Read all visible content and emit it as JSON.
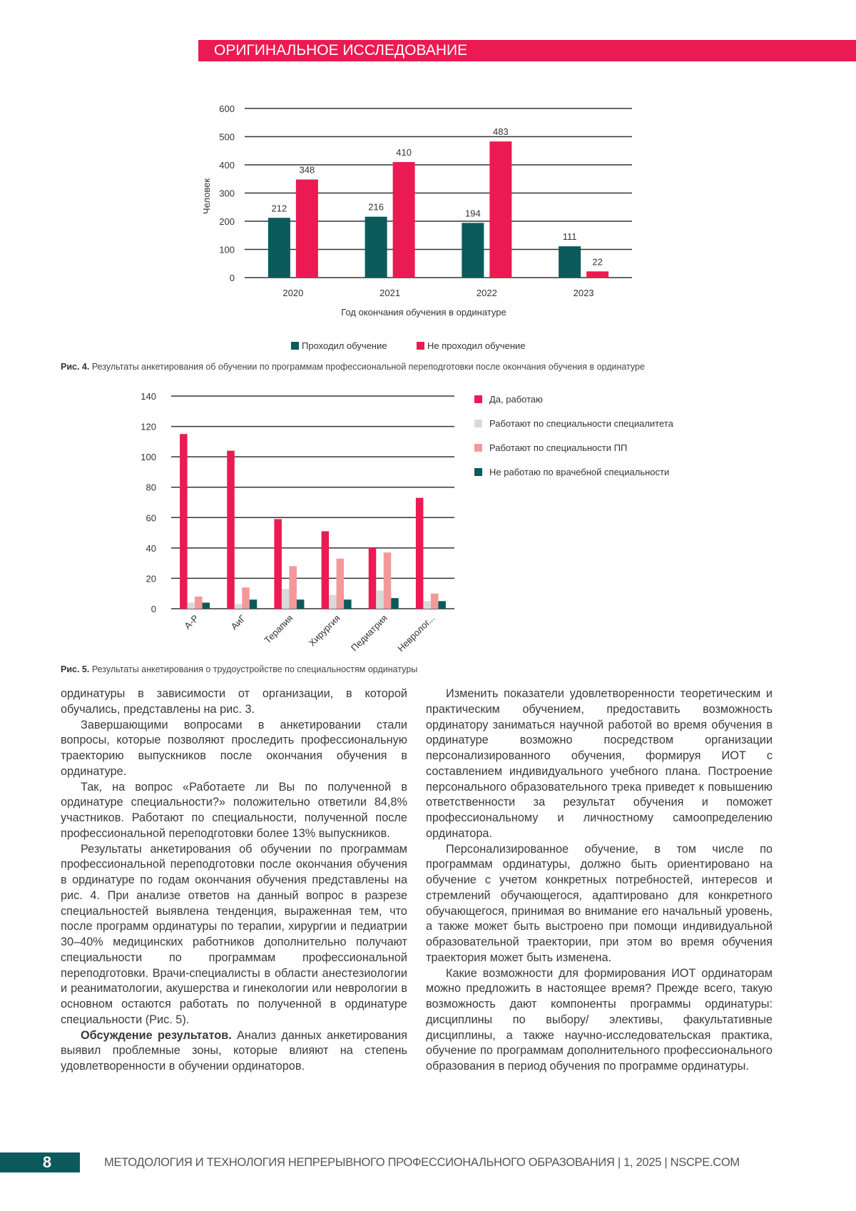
{
  "header": {
    "section": "ОРИГИНАЛЬНОЕ ИССЛЕДОВАНИЕ",
    "color": "#ec1a52"
  },
  "figure4": {
    "label": "Рис. 4.",
    "caption": "Результаты анкетирования об обучении по программам профессиональной переподготовки после окончания обучения в ординатуре"
  },
  "figure5": {
    "label": "Рис. 5.",
    "caption": "Результаты анкетирования о трудоустройстве по специальностям ординатуры"
  },
  "chart_data": [
    {
      "type": "bar",
      "title": "",
      "xlabel": "Год окончания обучения в ординатуре",
      "ylabel": "Человек",
      "categories": [
        "2020",
        "2021",
        "2022",
        "2023"
      ],
      "ylim": [
        0,
        600
      ],
      "yticks": [
        "0",
        "100",
        "200",
        "300",
        "400",
        "500",
        "600"
      ],
      "grid": true,
      "legend": "bottom",
      "series": [
        {
          "name": "Проходил обучение",
          "values": [
            212,
            216,
            194,
            111
          ],
          "color": "#0b5a5c"
        },
        {
          "name": "Не проходил обучение",
          "values": [
            348,
            410,
            483,
            22
          ],
          "color": "#ec1a52"
        }
      ]
    },
    {
      "type": "bar",
      "title": "",
      "xlabel": "",
      "ylabel": "",
      "categories": [
        "А-Р",
        "АиГ",
        "Терапия",
        "Хирургия",
        "Педиатрия",
        "Невролог..."
      ],
      "ylim": [
        0,
        140
      ],
      "yticks": [
        "0",
        "20",
        "40",
        "60",
        "80",
        "100",
        "120",
        "140"
      ],
      "grid": true,
      "legend": "right",
      "series": [
        {
          "name": "Да, работаю",
          "values": [
            115,
            104,
            59,
            51,
            40,
            73
          ],
          "color": "#ec1a52"
        },
        {
          "name": "Работают по специальности специалитета",
          "values": [
            4,
            3,
            13,
            9,
            12,
            5
          ],
          "color": "#d9d9d9"
        },
        {
          "name": "Работают по специальности ПП",
          "values": [
            8,
            14,
            28,
            33,
            37,
            10
          ],
          "color": "#f4999a"
        },
        {
          "name": "Не работаю по врачебной специальности",
          "values": [
            4,
            6,
            6,
            6,
            7,
            5
          ],
          "color": "#0b5a5c"
        }
      ]
    }
  ],
  "body": {
    "left": [
      "ординатуры в зависимости от организации, в которой обучались, представлены на рис. 3.",
      "Завершающими вопросами в анкетировании стали вопросы, которые позволяют проследить профессиональную траекторию выпускников после окончания обучения в ординатуре.",
      "Так, на вопрос «Работаете ли Вы по полученной в ординатуре специальности?» положительно ответили 84,8% участников. Работают по специальности, полученной после профессиональной переподготовки более 13% выпускников.",
      "Результаты анкетирования об обучении по программам профессиональной переподготовки после окончания обучения в ординатуре по годам окончания обучения представлены на рис. 4. При анализе ответов на данный вопрос в разрезе специальностей выявлена тенденция, выраженная тем, что после программ ординатуры по терапии, хирургии и педиатрии 30–40% медицинских работников дополнительно получают специальности по программам профессиональной переподготовки. Врачи-специалисты в области анестезиологии и реаниматологии, акушерства и гинекологии или неврологии в основном остаются работать по полученной в ординатуре специальности (Рис. 5)."
    ],
    "discussion_heading": "Обсуждение результатов.",
    "discussion_text": " Анализ данных анкетирования выявил проблемные зоны, которые влияют на степень удовлетворенности в обучении ординаторов.",
    "right": [
      "Изменить показатели удовлетворенности теоретическим и практическим обучением, предоставить возможность ординатору заниматься научной работой во время обучения в ординатуре возможно посредством организации персонализированного обучения, формируя ИОТ с составлением индивидуального учебного плана. Построение персонального образовательного трека приведет к повышению ответственности за результат обучения и поможет профессиональному и личностному самоопределению ординатора.",
      "Персонализированное обучение, в том числе по программам ординатуры, должно быть ориентировано на обучение с учетом конкретных потребностей, интересов и стремлений обучающегося, адаптировано для конкретного обучающегося, принимая во внимание его начальный уровень, а также может быть выстроено при помощи индивидуальной образовательной траектории, при этом во время обучения траектория может быть изменена.",
      "Какие возможности для формирования ИОТ ординаторам можно предложить в настоящее время? Прежде всего, такую возможность дают компоненты программы ординатуры: дисциплины по выбору/ элективы, факультативные дисциплины, а также научно-исследовательская практика, обучение по программам дополнительного профессионального образования в период обучения по программе ординатуры."
    ]
  },
  "footer": {
    "page_number": "8",
    "journal": "МЕТОДОЛОГИЯ И ТЕХНОЛОГИЯ НЕПРЕРЫВНОГО ПРОФЕССИОНАЛЬНОГО ОБРАЗОВАНИЯ | 1, 2025 | NSCPE.COM"
  }
}
